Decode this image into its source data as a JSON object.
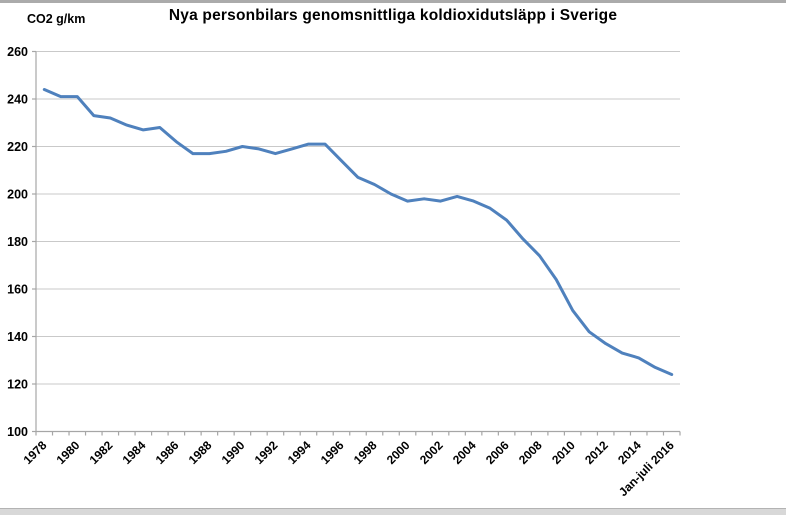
{
  "page": {
    "background_color": "#FFFFFF",
    "top_edge_color": "#ABABAB",
    "bottom_edge_color": "#D8D8D8"
  },
  "chart_data": {
    "type": "line",
    "title": "Nya personbilars genomsnittliga koldioxidutsläpp i Sverige",
    "y_axis_label": "CO2 g/km",
    "xlabel": "",
    "ylabel": "CO2 g/km",
    "x": [
      "1978",
      "1979",
      "1980",
      "1981",
      "1982",
      "1983",
      "1984",
      "1985",
      "1986",
      "1987",
      "1988",
      "1989",
      "1990",
      "1991",
      "1992",
      "1993",
      "1994",
      "1995",
      "1996",
      "1997",
      "1998",
      "1999",
      "2000",
      "2001",
      "2002",
      "2003",
      "2004",
      "2005",
      "2006",
      "2007",
      "2008",
      "2009",
      "2010",
      "2011",
      "2012",
      "2013",
      "2014",
      "2015",
      "Jan-juli 2016"
    ],
    "values": [
      244,
      241,
      241,
      233,
      232,
      229,
      227,
      228,
      222,
      217,
      217,
      218,
      220,
      219,
      217,
      219,
      221,
      221,
      214,
      207,
      204,
      200,
      197,
      198,
      197,
      199,
      197,
      194,
      189,
      181,
      174,
      164,
      151,
      142,
      137,
      133,
      131,
      127,
      124
    ],
    "x_tick_labels_shown": [
      "1978",
      "1980",
      "1982",
      "1984",
      "1986",
      "1988",
      "1990",
      "1992",
      "1994",
      "1996",
      "1998",
      "2000",
      "2002",
      "2004",
      "2006",
      "2008",
      "2010",
      "2012",
      "2014",
      "Jan-juli 2016"
    ],
    "x_label_rotation_deg": -45,
    "ylim": [
      100,
      260
    ],
    "y_ticks": [
      100,
      120,
      140,
      160,
      180,
      200,
      220,
      240,
      260
    ],
    "grid": "horizontal",
    "legend": "none",
    "line_color": "#4F81BD",
    "line_width": 3,
    "gridline_color": "#C9C9C9",
    "axis_color": "#A6A6A6",
    "text_color": "#000000"
  }
}
